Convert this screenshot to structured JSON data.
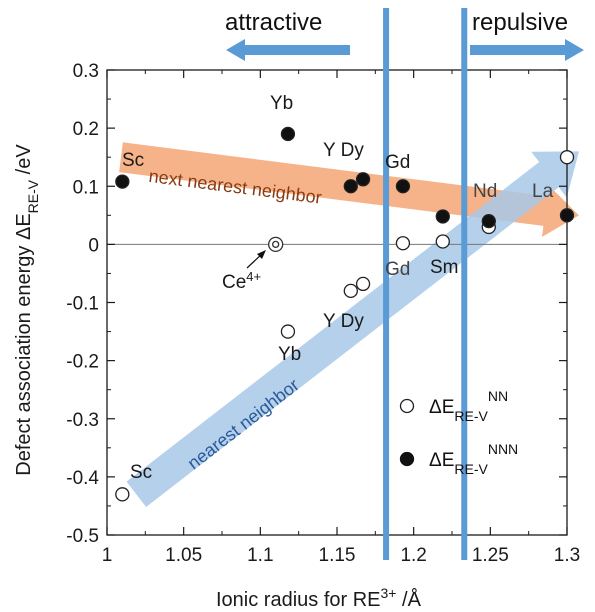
{
  "chart_data": {
    "type": "scatter",
    "xlabel": "Ionic radius for RE",
    "xlabel_sup": "3+",
    "xlabel_unit": " /Å",
    "ylabel": "Defect association energy ΔE",
    "ylabel_sub": "RE-V",
    "ylabel_unit": " /eV",
    "xlim": [
      1.0,
      1.3
    ],
    "ylim": [
      -0.5,
      0.3
    ],
    "x_ticks": [
      "1",
      "1.05",
      "1.1",
      "1.15",
      "1.2",
      "1.25",
      "1.3"
    ],
    "y_ticks": [
      "0.3",
      "0.2",
      "0.1",
      "0",
      "-0.1",
      "-0.2",
      "-0.3",
      "-0.4",
      "-0.5"
    ],
    "legend_position": "bottom-right",
    "legend": [
      {
        "name": "ΔE",
        "sub": "RE-V",
        "sup": "NN",
        "marker": "open"
      },
      {
        "name": "ΔE",
        "sub": "RE-V",
        "sup": "NNN",
        "marker": "filled"
      }
    ],
    "series": [
      {
        "name": "NN",
        "marker": "open",
        "points": [
          {
            "label": "Sc",
            "x": 1.01,
            "y": -0.43
          },
          {
            "label": "Yb",
            "x": 1.118,
            "y": -0.15
          },
          {
            "label": "Y",
            "x": 1.159,
            "y": -0.08
          },
          {
            "label": "Dy",
            "x": 1.167,
            "y": -0.068
          },
          {
            "label": "Gd",
            "x": 1.193,
            "y": 0.002
          },
          {
            "label": "Sm",
            "x": 1.219,
            "y": 0.005
          },
          {
            "label": "Nd",
            "x": 1.249,
            "y": 0.03
          },
          {
            "label": "La",
            "x": 1.3,
            "y": 0.15
          }
        ]
      },
      {
        "name": "NNN",
        "marker": "filled",
        "points": [
          {
            "label": "Sc",
            "x": 1.01,
            "y": 0.108
          },
          {
            "label": "Yb",
            "x": 1.118,
            "y": 0.19
          },
          {
            "label": "Y",
            "x": 1.159,
            "y": 0.1
          },
          {
            "label": "Dy",
            "x": 1.167,
            "y": 0.112
          },
          {
            "label": "Gd",
            "x": 1.193,
            "y": 0.1
          },
          {
            "label": "Sm",
            "x": 1.219,
            "y": 0.048
          },
          {
            "label": "Nd",
            "x": 1.249,
            "y": 0.04
          },
          {
            "label": "La",
            "x": 1.3,
            "y": 0.05
          }
        ]
      }
    ],
    "ce_point": {
      "label": "Ce",
      "sup": "4+",
      "x": 1.11,
      "y": 0.0
    },
    "vertical_lines_x": [
      1.182,
      1.233
    ],
    "bands": [
      {
        "name": "next nearest neighbor",
        "color": "#f4a574",
        "text_color": "#8b3a10",
        "from": [
          1.0,
          0.15
        ],
        "to": [
          1.3,
          0.05
        ]
      },
      {
        "name": "nearest neighbor",
        "color": "#a8c8e8",
        "text_color": "#2a5a9a",
        "from": [
          1.01,
          -0.43
        ],
        "to": [
          1.3,
          0.16
        ]
      }
    ],
    "point_labels": {
      "Sc_NNN": "Sc",
      "Yb_NNN": "Yb",
      "YDy_NNN": "Y Dy",
      "Gd_NNN": "Gd",
      "Nd": "Nd",
      "La": "La",
      "Gd_NN": "Gd",
      "Sm": "Sm",
      "YDy_NN": "Y Dy",
      "Yb_NN": "Yb",
      "Sc_NN": "Sc"
    },
    "top_labels": {
      "left": "attractive",
      "right": "repulsive"
    },
    "colors": {
      "line_blue": "#5b9bd5",
      "arrow_blue": "#5b9bd5",
      "axis": "#1a1a1a"
    }
  }
}
